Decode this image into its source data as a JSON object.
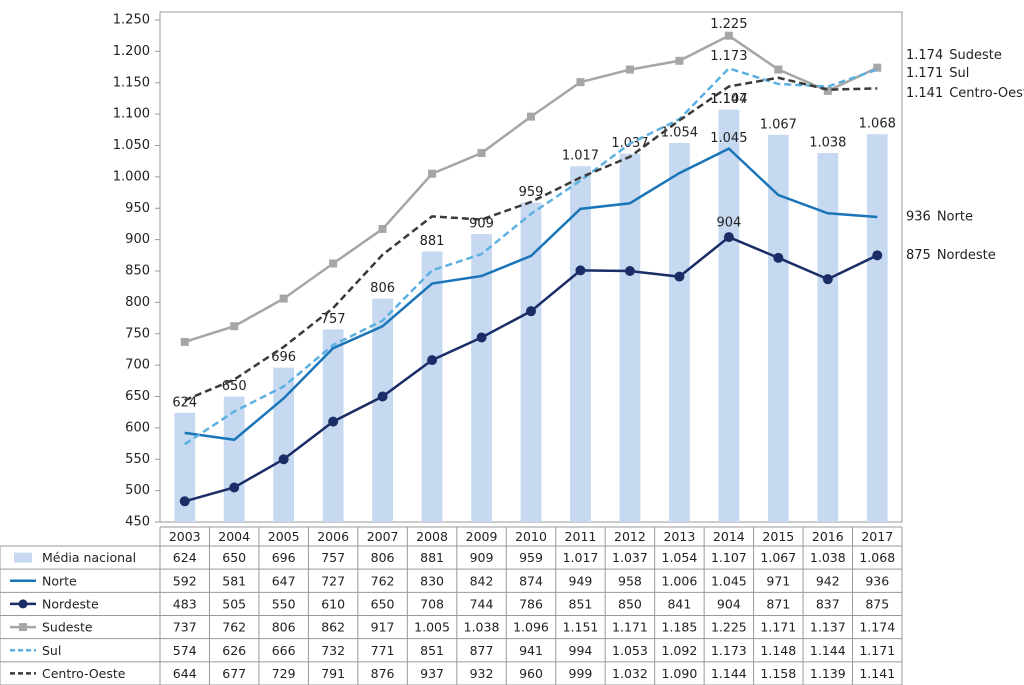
{
  "chart_data": {
    "type": "bar",
    "categories": [
      "2003",
      "2004",
      "2005",
      "2006",
      "2007",
      "2008",
      "2009",
      "2010",
      "2011",
      "2012",
      "2013",
      "2014",
      "2015",
      "2016",
      "2017"
    ],
    "ylim": [
      450,
      1250
    ],
    "yticks": [
      450,
      500,
      550,
      600,
      650,
      700,
      750,
      800,
      850,
      900,
      950,
      {
        "value": 1000,
        "label": "1.000"
      },
      {
        "value": 1050,
        "label": "1.050"
      },
      {
        "value": 1100,
        "label": "1.100"
      },
      {
        "value": 1150,
        "label": "1.150"
      },
      {
        "value": 1200,
        "label": "1.200"
      },
      {
        "value": 1250,
        "label": "1.250"
      }
    ],
    "series": [
      {
        "name": "Média nacional",
        "type": "bar",
        "color": "#c6d9f1",
        "values": [
          624,
          650,
          696,
          757,
          806,
          881,
          909,
          959,
          1017,
          1037,
          1054,
          1107,
          1067,
          1038,
          1068
        ],
        "value_labels": [
          "624",
          "650",
          "696",
          "757",
          "806",
          "881",
          "909",
          "959",
          "1.017",
          "1.037",
          "1.054",
          "1.107",
          "1.067",
          "1.038",
          "1.068"
        ]
      },
      {
        "name": "Norte",
        "type": "line",
        "color": "#1a75b8",
        "dash": false,
        "marker": "none",
        "values": [
          592,
          581,
          647,
          727,
          762,
          830,
          842,
          874,
          949,
          958,
          1006,
          1045,
          971,
          942,
          936
        ],
        "value_labels": [
          "592",
          "581",
          "647",
          "727",
          "762",
          "830",
          "842",
          "874",
          "949",
          "958",
          "1.006",
          "1.045",
          "971",
          "942",
          "936"
        ]
      },
      {
        "name": "Nordeste",
        "type": "line",
        "color": "#1b2d66",
        "dash": false,
        "marker": "circle",
        "values": [
          483,
          505,
          550,
          610,
          650,
          708,
          744,
          786,
          851,
          850,
          841,
          904,
          871,
          837,
          875
        ],
        "value_labels": [
          "483",
          "505",
          "550",
          "610",
          "650",
          "708",
          "744",
          "786",
          "851",
          "850",
          "841",
          "904",
          "871",
          "837",
          "875"
        ]
      },
      {
        "name": "Sudeste",
        "type": "line",
        "color": "#a6a6a6",
        "dash": false,
        "marker": "square",
        "values": [
          737,
          762,
          806,
          862,
          917,
          1005,
          1038,
          1096,
          1151,
          1171,
          1185,
          1225,
          1171,
          1137,
          1174
        ],
        "value_labels": [
          "737",
          "762",
          "806",
          "862",
          "917",
          "1.005",
          "1.038",
          "1.096",
          "1.151",
          "1.171",
          "1.185",
          "1.225",
          "1.171",
          "1.137",
          "1.174"
        ]
      },
      {
        "name": "Sul",
        "type": "line",
        "color": "#5cb0e2",
        "dash": true,
        "marker": "none",
        "values": [
          574,
          626,
          666,
          732,
          771,
          851,
          877,
          941,
          994,
          1053,
          1092,
          1173,
          1148,
          1144,
          1171
        ],
        "value_labels": [
          "574",
          "626",
          "666",
          "732",
          "771",
          "851",
          "877",
          "941",
          "994",
          "1.053",
          "1.092",
          "1.173",
          "1.148",
          "1.144",
          "1.171"
        ]
      },
      {
        "name": "Centro-Oeste",
        "type": "line",
        "color": "#3a3a3a",
        "dash": true,
        "marker": "none",
        "values": [
          644,
          677,
          729,
          791,
          876,
          937,
          932,
          960,
          999,
          1032,
          1090,
          1144,
          1158,
          1139,
          1141
        ],
        "value_labels": [
          "644",
          "677",
          "729",
          "791",
          "876",
          "937",
          "932",
          "960",
          "999",
          "1.032",
          "1.090",
          "1.144",
          "1.158",
          "1.139",
          "1.141"
        ]
      }
    ]
  }
}
